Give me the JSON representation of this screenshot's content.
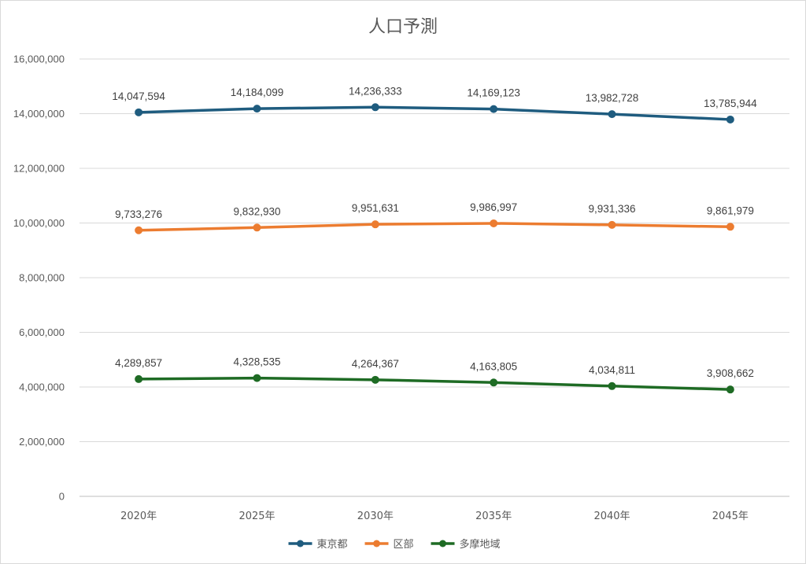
{
  "chart_data": {
    "type": "line",
    "title": "人口予測",
    "xlabel": "",
    "ylabel": "",
    "categories": [
      "2020年",
      "2025年",
      "2030年",
      "2035年",
      "2040年",
      "2045年"
    ],
    "ylim": [
      0,
      16000000
    ],
    "yticks": [
      "0",
      "2,000,000",
      "4,000,000",
      "6,000,000",
      "8,000,000",
      "10,000,000",
      "12,000,000",
      "14,000,000",
      "16,000,000"
    ],
    "grid": true,
    "legend_position": "bottom",
    "series": [
      {
        "name": "東京都",
        "color": "#1f5c7f",
        "values": [
          14047594,
          14184099,
          14236333,
          14169123,
          13982728,
          13785944
        ],
        "labels": [
          "14,047,594",
          "14,184,099",
          "14,236,333",
          "14,169,123",
          "13,982,728",
          "13,785,944"
        ]
      },
      {
        "name": "区部",
        "color": "#ec7c30",
        "values": [
          9733276,
          9832930,
          9951631,
          9986997,
          9931336,
          9861979
        ],
        "labels": [
          "9,733,276",
          "9,832,930",
          "9,951,631",
          "9,986,997",
          "9,931,336",
          "9,861,979"
        ]
      },
      {
        "name": "多摩地域",
        "color": "#1e6b24",
        "values": [
          4289857,
          4328535,
          4264367,
          4163805,
          4034811,
          3908662
        ],
        "labels": [
          "4,289,857",
          "4,328,535",
          "4,264,367",
          "4,163,805",
          "4,034,811",
          "3,908,662"
        ]
      }
    ]
  }
}
